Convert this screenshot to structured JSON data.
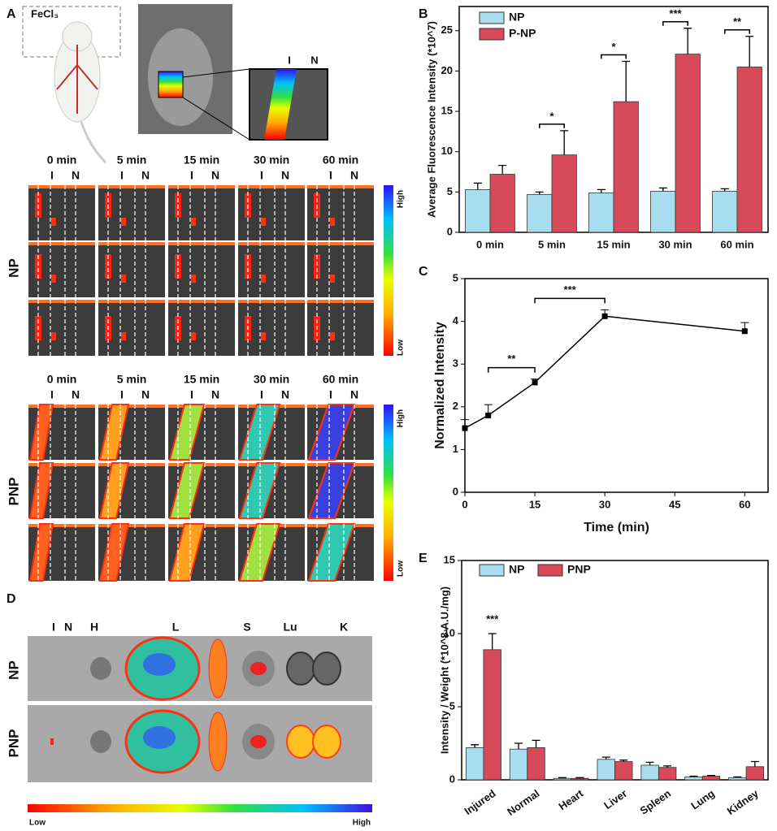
{
  "panels": {
    "A": {
      "label": "A",
      "reagent": "FeCl₃",
      "inset_lanes": [
        "I",
        "N"
      ],
      "times": [
        "0 min",
        "5 min",
        "15 min",
        "30 min",
        "60 min"
      ],
      "lanes": [
        "I",
        "N"
      ],
      "rows": [
        "NP",
        "PNP"
      ],
      "colorbar": [
        "High",
        "Low"
      ]
    },
    "D": {
      "label": "D",
      "organs": [
        "I",
        "N",
        "H",
        "L",
        "S",
        "Lu",
        "K"
      ],
      "rows": [
        "NP",
        "PNP"
      ],
      "colorbar": [
        "Low",
        "High"
      ]
    }
  },
  "chart_data": [
    {
      "type": "bar",
      "panel_label": "B",
      "y_label": "Average Fluorescence Intensity (*10^7)",
      "categories": [
        "0 min",
        "5 min",
        "15 min",
        "30 min",
        "60 min"
      ],
      "series": [
        {
          "name": "NP",
          "color": "#a8dcef",
          "values": [
            5.3,
            4.7,
            4.9,
            5.1,
            5.1
          ],
          "error": [
            0.8,
            0.3,
            0.4,
            0.4,
            0.3
          ]
        },
        {
          "name": "P-NP",
          "color": "#d84a5a",
          "values": [
            7.2,
            9.6,
            16.2,
            22.1,
            20.5
          ],
          "error": [
            1.1,
            3.0,
            5.0,
            3.2,
            3.8
          ]
        }
      ],
      "significance": [
        null,
        "*",
        "*",
        "***",
        "**"
      ],
      "ylim": [
        0,
        28
      ],
      "yticks": [
        0,
        5,
        10,
        15,
        20,
        25
      ],
      "legend": "upper left"
    },
    {
      "type": "line",
      "panel_label": "C",
      "x_label": "Time (min)",
      "y_label": "Normalized Intensity",
      "x": [
        0,
        5,
        15,
        30,
        60
      ],
      "series": [
        {
          "color": "#000000",
          "values": [
            1.5,
            1.8,
            2.57,
            4.12,
            3.77
          ],
          "error": [
            0.2,
            0.25,
            0.08,
            0.15,
            0.2
          ]
        }
      ],
      "brackets": [
        {
          "text": "**",
          "x": [
            5,
            15
          ]
        },
        {
          "text": "***",
          "x": [
            15,
            30
          ]
        }
      ],
      "xlim": [
        0,
        65
      ],
      "xticks": [
        0,
        15,
        30,
        45,
        60
      ],
      "ylim": [
        0,
        5
      ],
      "yticks": [
        0,
        1,
        2,
        3,
        4,
        5
      ]
    },
    {
      "type": "bar",
      "panel_label": "E",
      "y_label": "Intensity / Weight (*10^8 A.U./mg)",
      "categories": [
        "Injured",
        "Normal",
        "Heart",
        "Liver",
        "Spleen",
        "Lung",
        "Kidney"
      ],
      "series": [
        {
          "name": "NP",
          "color": "#a8dcef",
          "values": [
            2.2,
            2.1,
            0.1,
            1.4,
            1.0,
            0.2,
            0.15
          ],
          "error": [
            0.2,
            0.4,
            0.05,
            0.15,
            0.2,
            0.05,
            0.05
          ]
        },
        {
          "name": "PNP",
          "color": "#d84a5a",
          "values": [
            8.9,
            2.2,
            0.1,
            1.25,
            0.85,
            0.25,
            0.9
          ],
          "error": [
            1.1,
            0.5,
            0.05,
            0.1,
            0.1,
            0.05,
            0.35
          ]
        }
      ],
      "significance": [
        "***",
        null,
        null,
        null,
        null,
        null,
        null
      ],
      "ylim": [
        0,
        15
      ],
      "yticks": [
        0,
        5,
        10,
        15
      ],
      "legend": "upper left"
    }
  ]
}
